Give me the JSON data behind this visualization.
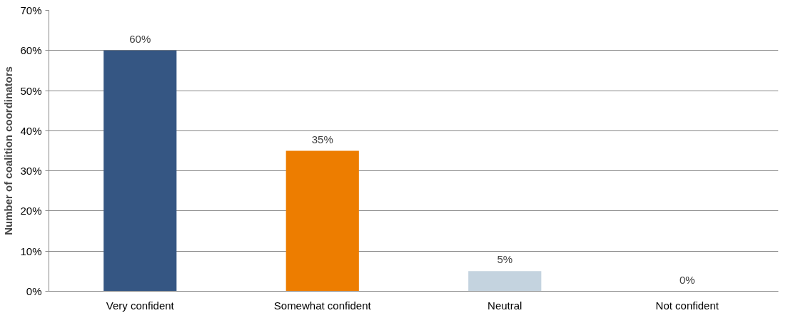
{
  "chart_data": {
    "type": "bar",
    "ylabel": "Number of coalition coordinators",
    "categories": [
      "Very confident",
      "Somewhat confident",
      "Neutral",
      "Not confident"
    ],
    "values": [
      60,
      35,
      5,
      0
    ],
    "colors": [
      "#355683",
      "#ed7d00",
      "#c4d3df",
      "#a5a5a5"
    ],
    "value_labels": [
      "60%",
      "35%",
      "5%",
      "0%"
    ],
    "ylim": [
      0,
      70
    ],
    "yticks": [
      {
        "value": 0,
        "label": "0%"
      },
      {
        "value": 10,
        "label": "10%"
      },
      {
        "value": 20,
        "label": "20%"
      },
      {
        "value": 30,
        "label": "30%"
      },
      {
        "value": 40,
        "label": "40%"
      },
      {
        "value": 50,
        "label": "50%"
      },
      {
        "value": 60,
        "label": "60%"
      },
      {
        "value": 70,
        "label": "70%"
      }
    ],
    "grid": "y"
  }
}
